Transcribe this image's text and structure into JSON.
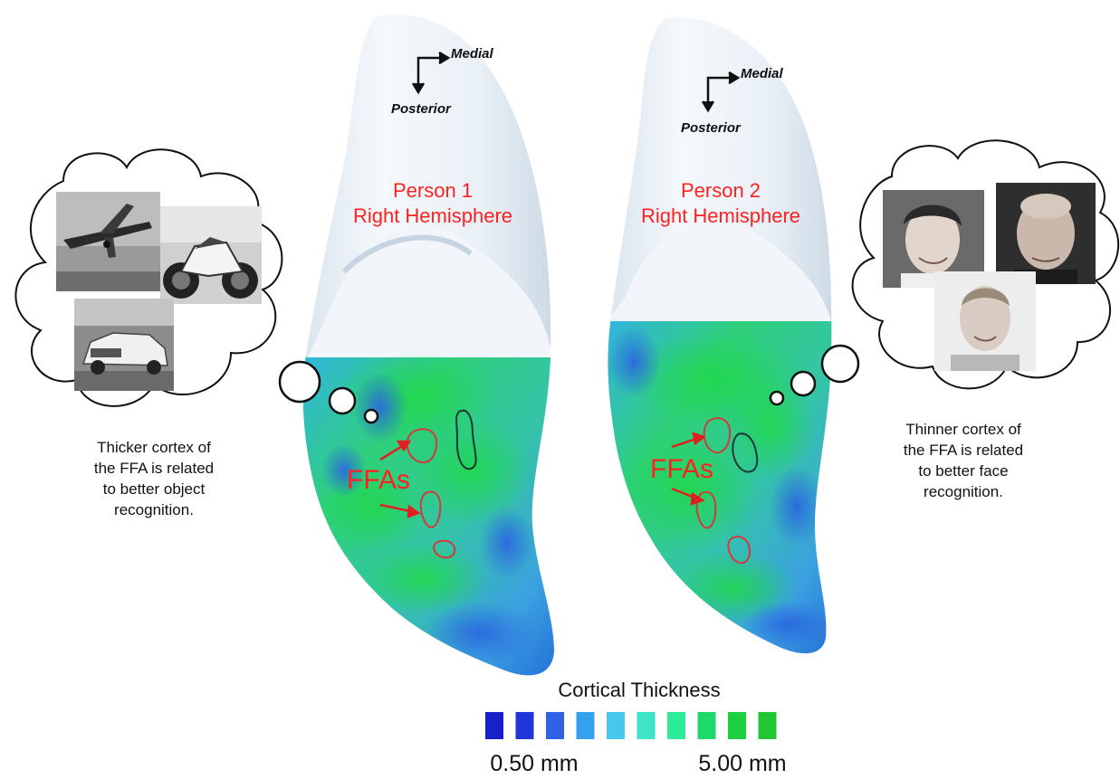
{
  "left_panel": {
    "person_line1": "Person 1",
    "person_line2": "Right Hemisphere",
    "dir_medial": "Medial",
    "dir_posterior": "Posterior",
    "ffa_label": "FFAs",
    "caption": [
      "Thicker cortex of",
      "the FFA is related",
      "to better object",
      "recognition."
    ],
    "thought_images": [
      "airplane",
      "motorcycle",
      "car"
    ]
  },
  "right_panel": {
    "person_line1": "Person 2",
    "person_line2": "Right Hemisphere",
    "dir_medial": "Medial",
    "dir_posterior": "Posterior",
    "ffa_label": "FFAs",
    "caption": [
      "Thinner cortex of",
      "the FFA is related",
      "to better face",
      "recognition."
    ],
    "thought_images": [
      "face-1",
      "face-2",
      "face-3"
    ]
  },
  "legend": {
    "title": "Cortical Thickness",
    "min_label": "0.50 mm",
    "max_label": "5.00 mm",
    "swatches": [
      "#1622c8",
      "#2136d8",
      "#2f62e6",
      "#35a0ee",
      "#46c7ee",
      "#3fe3c8",
      "#2cec9a",
      "#1fd86a",
      "#1cd040",
      "#22c632"
    ]
  },
  "colors": {
    "label_red": "#ff2020",
    "outline_red": "#d23a3a",
    "outline_dark": "#1f3a36"
  }
}
